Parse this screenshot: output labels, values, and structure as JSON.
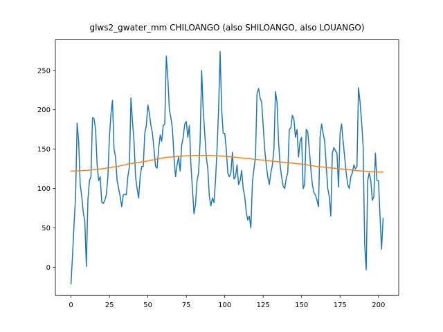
{
  "chart_data": {
    "type": "line",
    "title": "glws2_gwater_mm CHILOANGO (also SHILOANGO, also LOUANGO)",
    "xlim": [
      -10.15,
      213.15
    ],
    "ylim": [
      -35.8,
      288.8
    ],
    "xticks": [
      0,
      25,
      50,
      75,
      100,
      125,
      150,
      175,
      200
    ],
    "yticks": [
      0,
      50,
      100,
      150,
      200,
      250
    ],
    "grid": false,
    "series": [
      {
        "color": "#1f77b4",
        "x": [
          0,
          1,
          2,
          3,
          4,
          5,
          6,
          7,
          8,
          9,
          10,
          11,
          12,
          13,
          14,
          15,
          16,
          17,
          18,
          19,
          20,
          21,
          22,
          23,
          24,
          25,
          26,
          27,
          28,
          29,
          30,
          31,
          32,
          33,
          34,
          35,
          36,
          37,
          38,
          39,
          40,
          41,
          42,
          43,
          44,
          45,
          46,
          47,
          48,
          49,
          50,
          51,
          52,
          53,
          54,
          55,
          56,
          57,
          58,
          59,
          60,
          61,
          62,
          63,
          64,
          65,
          66,
          67,
          68,
          69,
          70,
          71,
          72,
          73,
          74,
          75,
          76,
          77,
          78,
          79,
          80,
          81,
          82,
          83,
          84,
          85,
          86,
          87,
          88,
          89,
          90,
          91,
          92,
          93,
          94,
          95,
          96,
          97,
          98,
          99,
          100,
          101,
          102,
          103,
          104,
          105,
          106,
          107,
          108,
          109,
          110,
          111,
          112,
          113,
          114,
          115,
          116,
          117,
          118,
          119,
          120,
          121,
          122,
          123,
          124,
          125,
          126,
          127,
          128,
          129,
          130,
          131,
          132,
          133,
          134,
          135,
          136,
          137,
          138,
          139,
          140,
          141,
          142,
          143,
          144,
          145,
          146,
          147,
          148,
          149,
          150,
          151,
          152,
          153,
          154,
          155,
          156,
          157,
          158,
          159,
          160,
          161,
          162,
          163,
          164,
          165,
          166,
          167,
          168,
          169,
          170,
          171,
          172,
          173,
          174,
          175,
          176,
          177,
          178,
          179,
          180,
          181,
          182,
          183,
          184,
          185,
          186,
          187,
          188,
          189,
          190,
          191,
          192,
          193,
          194,
          195,
          196,
          197,
          198,
          199,
          200,
          201,
          202,
          203
        ],
        "values": [
          -21,
          15,
          55,
          90,
          183,
          160,
          105,
          90,
          70,
          58,
          1,
          85,
          110,
          115,
          190,
          189,
          175,
          130,
          110,
          115,
          83,
          81,
          85,
          92,
          115,
          165,
          195,
          212,
          150,
          140,
          110,
          100,
          90,
          77,
          92,
          93,
          92,
          115,
          128,
          215,
          185,
          160,
          115,
          100,
          88,
          115,
          128,
          128,
          170,
          180,
          206,
          195,
          180,
          170,
          150,
          128,
          126,
          150,
          168,
          160,
          180,
          182,
          268,
          240,
          200,
          190,
          175,
          140,
          115,
          130,
          140,
          122,
          155,
          165,
          182,
          185,
          165,
          180,
          130,
          100,
          68,
          80,
          110,
          120,
          160,
          250,
          200,
          170,
          140,
          125,
          90,
          78,
          88,
          82,
          110,
          150,
          200,
          274,
          200,
          170,
          170,
          150,
          120,
          115,
          120,
          146,
          112,
          115,
          130,
          105,
          110,
          123,
          100,
          90,
          70,
          60,
          65,
          50,
          108,
          125,
          140,
          220,
          227,
          215,
          210,
          180,
          150,
          130,
          115,
          105,
          120,
          130,
          150,
          223,
          210,
          160,
          130,
          115,
          103,
          100,
          113,
          120,
          175,
          177,
          193,
          188,
          165,
          175,
          140,
          160,
          165,
          100,
          105,
          175,
          172,
          150,
          125,
          105,
          95,
          92,
          85,
          77,
          165,
          182,
          170,
          160,
          130,
          100,
          90,
          65,
          145,
          152,
          148,
          145,
          102,
          170,
          182,
          160,
          140,
          120,
          105,
          100,
          115,
          120,
          130,
          125,
          128,
          228,
          210,
          185,
          155,
          30,
          -3,
          110,
          120,
          110,
          85,
          90,
          145,
          110,
          110,
          65,
          23,
          62
        ]
      },
      {
        "color": "#ff7f0e",
        "x": [
          0,
          10,
          20,
          30,
          40,
          50,
          60,
          70,
          80,
          90,
          100,
          110,
          120,
          130,
          140,
          150,
          160,
          170,
          180,
          190,
          200,
          203
        ],
        "values": [
          122,
          123,
          125,
          128,
          132,
          135,
          139,
          141,
          142,
          142,
          141,
          139,
          137,
          135,
          133,
          131,
          128,
          126,
          124,
          122,
          121,
          121
        ]
      }
    ]
  }
}
